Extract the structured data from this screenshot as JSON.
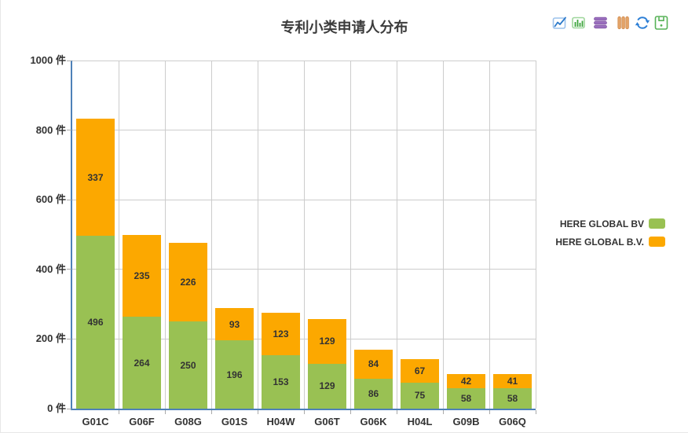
{
  "panel": {
    "title": "专利小类申请人分布"
  },
  "toolbox": {
    "icons": [
      {
        "name": "magictype-line-icon",
        "tooltip": "line"
      },
      {
        "name": "magictype-bar-icon",
        "tooltip": "bar"
      },
      {
        "name": "magictype-stack-icon",
        "tooltip": "stack"
      },
      {
        "name": "magictype-tiled-icon",
        "tooltip": "tiled"
      },
      {
        "name": "restore-icon",
        "tooltip": "restore"
      },
      {
        "name": "save-image-icon",
        "tooltip": "save"
      }
    ]
  },
  "chart_data": {
    "type": "bar",
    "stacked": true,
    "title": "专利小类申请人分布",
    "categories": [
      "G01C",
      "G06F",
      "G08G",
      "G01S",
      "H04W",
      "G06T",
      "G06K",
      "H04L",
      "G09B",
      "G06Q"
    ],
    "series": [
      {
        "name": "HERE GLOBAL BV",
        "color": "#99C153",
        "values": [
          496,
          264,
          250,
          196,
          153,
          129,
          86,
          75,
          58,
          58
        ]
      },
      {
        "name": "HERE GLOBAL B.V.",
        "color": "#FCA800",
        "values": [
          337,
          235,
          226,
          93,
          123,
          129,
          84,
          67,
          42,
          41
        ]
      }
    ],
    "ylabel_suffix": " 件",
    "ylim": [
      0,
      1000
    ],
    "ytick_step": 200,
    "grid": true,
    "legend_position": "right"
  },
  "colors": {
    "axis": "#4E81B8",
    "gridline": "#CCCCCC",
    "label": "#333333",
    "title": "#3C3C3C"
  }
}
